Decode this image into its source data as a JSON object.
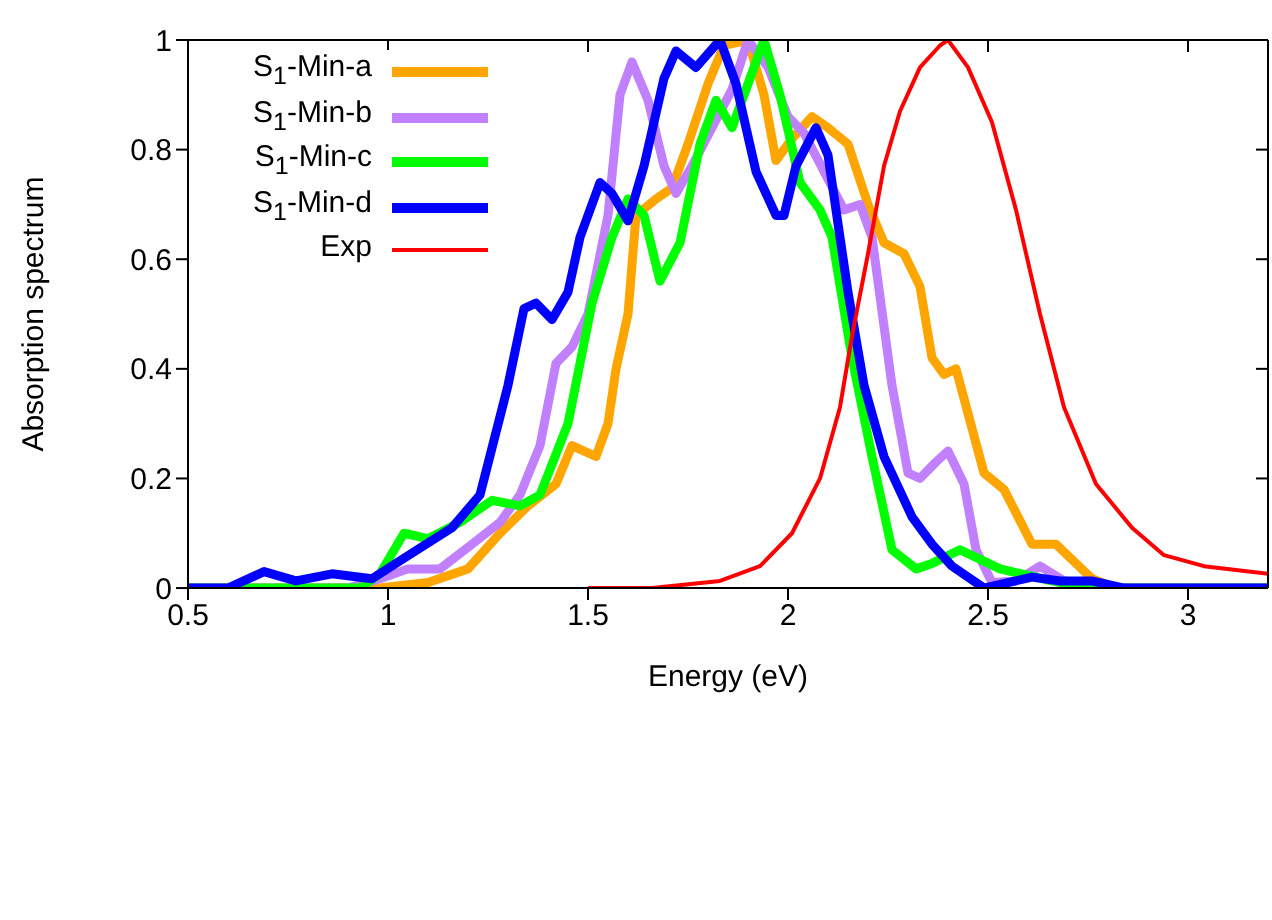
{
  "chart_data": {
    "type": "line",
    "xlabel": "Energy (eV)",
    "ylabel": "Absorption spectrum",
    "xlim": [
      0.5,
      3.2
    ],
    "xticks": [
      0.5,
      1,
      1.5,
      2,
      2.5,
      3
    ],
    "ylim": [
      0,
      1
    ],
    "yticks": [
      0,
      0.2,
      0.4,
      0.6,
      0.8,
      1
    ],
    "grid": false,
    "legend": "top left",
    "marker": "none",
    "line_style": "solid",
    "series": [
      {
        "name": "S$_{1}$-Min-a",
        "color": "#ffa500",
        "x": [
          0.5,
          0.98,
          1.1,
          1.2,
          1.28,
          1.35,
          1.42,
          1.46,
          1.52,
          1.55,
          1.57,
          1.6,
          1.62,
          1.67,
          1.71,
          1.75,
          1.8,
          1.84,
          1.9,
          1.94,
          1.97,
          2.01,
          2.06,
          2.1,
          2.15,
          2.2,
          2.24,
          2.29,
          2.33,
          2.36,
          2.39,
          2.42,
          2.49,
          2.54,
          2.61,
          2.67,
          2.76,
          2.82,
          3.2
        ],
        "values": [
          0,
          0,
          0.01,
          0.035,
          0.1,
          0.15,
          0.19,
          0.26,
          0.24,
          0.3,
          0.4,
          0.5,
          0.68,
          0.71,
          0.73,
          0.81,
          0.92,
          0.99,
          1.0,
          0.9,
          0.78,
          0.82,
          0.86,
          0.84,
          0.81,
          0.7,
          0.63,
          0.61,
          0.55,
          0.42,
          0.39,
          0.4,
          0.21,
          0.18,
          0.08,
          0.08,
          0.017,
          0,
          0
        ]
      },
      {
        "name": "S$_{1}$-Min-b",
        "color": "#c080ff",
        "x": [
          0.5,
          0.9,
          0.98,
          1.05,
          1.13,
          1.21,
          1.28,
          1.33,
          1.38,
          1.42,
          1.46,
          1.5,
          1.55,
          1.58,
          1.61,
          1.65,
          1.69,
          1.72,
          1.76,
          1.81,
          1.86,
          1.9,
          1.95,
          2.0,
          2.04,
          2.09,
          2.14,
          2.18,
          2.21,
          2.26,
          2.3,
          2.33,
          2.37,
          2.4,
          2.44,
          2.47,
          2.51,
          2.57,
          2.63,
          2.69,
          2.76,
          3.2
        ],
        "values": [
          0,
          0,
          0.017,
          0.035,
          0.035,
          0.08,
          0.12,
          0.17,
          0.26,
          0.41,
          0.44,
          0.5,
          0.68,
          0.9,
          0.96,
          0.89,
          0.77,
          0.72,
          0.77,
          0.84,
          0.91,
          1.0,
          0.95,
          0.86,
          0.83,
          0.76,
          0.69,
          0.7,
          0.64,
          0.37,
          0.21,
          0.2,
          0.23,
          0.25,
          0.19,
          0.07,
          0.01,
          0.013,
          0.04,
          0.013,
          0,
          0
        ]
      },
      {
        "name": "S$_{1}$-Min-c",
        "color": "#00ff00",
        "x": [
          0.5,
          0.93,
          0.98,
          1.04,
          1.1,
          1.18,
          1.26,
          1.33,
          1.38,
          1.45,
          1.51,
          1.56,
          1.6,
          1.64,
          1.68,
          1.73,
          1.78,
          1.82,
          1.86,
          1.9,
          1.94,
          1.98,
          2.03,
          2.08,
          2.11,
          2.16,
          2.21,
          2.26,
          2.32,
          2.36,
          2.43,
          2.53,
          2.66,
          2.76,
          3.2
        ],
        "values": [
          0,
          0,
          0.026,
          0.1,
          0.09,
          0.12,
          0.16,
          0.15,
          0.17,
          0.3,
          0.52,
          0.64,
          0.71,
          0.68,
          0.56,
          0.63,
          0.81,
          0.89,
          0.84,
          0.92,
          1.0,
          0.9,
          0.74,
          0.69,
          0.64,
          0.42,
          0.24,
          0.07,
          0.035,
          0.045,
          0.07,
          0.035,
          0.013,
          0,
          0
        ]
      },
      {
        "name": "S$_{1}$-Min-d",
        "color": "#0000ff",
        "x": [
          0.5,
          0.6,
          0.69,
          0.77,
          0.86,
          0.96,
          1.03,
          1.16,
          1.23,
          1.3,
          1.34,
          1.37,
          1.41,
          1.45,
          1.48,
          1.53,
          1.56,
          1.6,
          1.64,
          1.69,
          1.72,
          1.77,
          1.83,
          1.87,
          1.92,
          1.97,
          1.99,
          2.02,
          2.07,
          2.1,
          2.15,
          2.19,
          2.24,
          2.31,
          2.36,
          2.41,
          2.49,
          2.61,
          2.68,
          2.76,
          2.84,
          3.2
        ],
        "values": [
          0,
          0,
          0.03,
          0.013,
          0.026,
          0.017,
          0.05,
          0.11,
          0.17,
          0.37,
          0.51,
          0.52,
          0.49,
          0.54,
          0.64,
          0.74,
          0.72,
          0.67,
          0.77,
          0.93,
          0.98,
          0.95,
          1.0,
          0.92,
          0.76,
          0.68,
          0.68,
          0.77,
          0.84,
          0.79,
          0.54,
          0.37,
          0.24,
          0.13,
          0.08,
          0.04,
          0,
          0.02,
          0.013,
          0.013,
          0,
          0
        ]
      },
      {
        "name": "Exp",
        "color": "#ff0000",
        "x": [
          1.5,
          1.66,
          1.83,
          1.93,
          2.01,
          2.08,
          2.13,
          2.16,
          2.2,
          2.24,
          2.28,
          2.33,
          2.38,
          2.4,
          2.45,
          2.51,
          2.57,
          2.63,
          2.69,
          2.77,
          2.86,
          2.94,
          3.04,
          3.2
        ],
        "values": [
          0,
          0,
          0.013,
          0.04,
          0.1,
          0.2,
          0.33,
          0.46,
          0.61,
          0.77,
          0.87,
          0.95,
          0.99,
          1.0,
          0.95,
          0.85,
          0.69,
          0.5,
          0.33,
          0.19,
          0.11,
          0.06,
          0.04,
          0.026
        ]
      }
    ]
  }
}
